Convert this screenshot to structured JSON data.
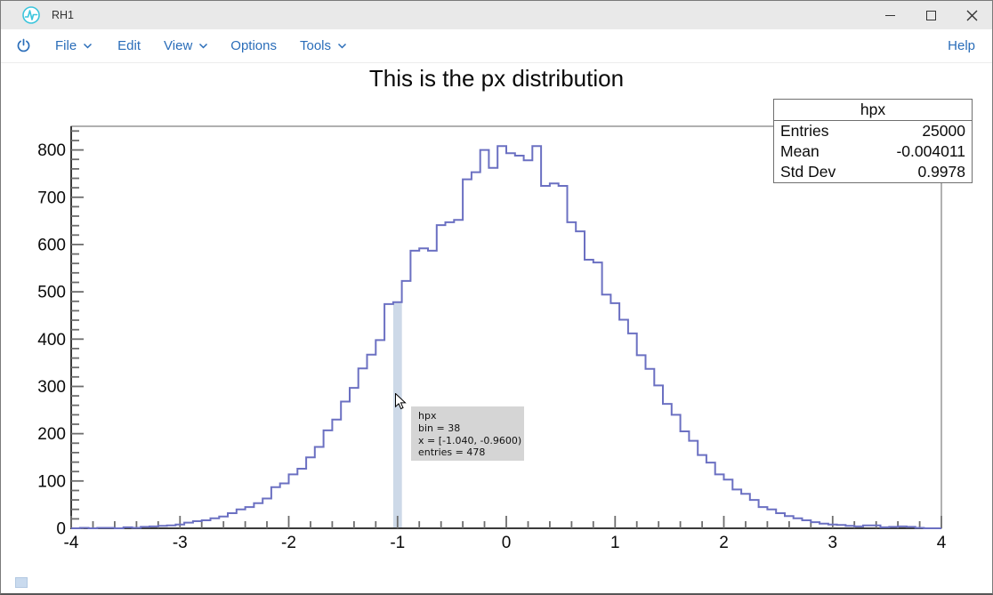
{
  "window": {
    "title": "RH1"
  },
  "menu": {
    "accent": "#2a6db9",
    "items": [
      {
        "label": "File",
        "chevron": true
      },
      {
        "label": "Edit",
        "chevron": false
      },
      {
        "label": "View",
        "chevron": true
      },
      {
        "label": "Options",
        "chevron": false
      },
      {
        "label": "Tools",
        "chevron": true
      }
    ],
    "help_label": "Help"
  },
  "chart_data": {
    "type": "histogram",
    "name": "hpx",
    "title": "This is the px distribution",
    "x_range": [
      -4,
      4
    ],
    "n_bins": 100,
    "bin_width": 0.08,
    "y_range": [
      0,
      850
    ],
    "x_major_ticks": [
      -4,
      -3,
      -2,
      -1,
      0,
      1,
      2,
      3,
      4
    ],
    "y_major_ticks": [
      0,
      100,
      200,
      300,
      400,
      500,
      600,
      700,
      800
    ],
    "x_minor_step": 0.2,
    "y_minor_step": 20,
    "grid": false,
    "line_color": "#6b70c2",
    "highlighted_bin": {
      "index": 38,
      "x_low": -1.04,
      "x_high": -0.96,
      "entries": 478,
      "color": "#cdd9e8"
    },
    "values": [
      0,
      1,
      0,
      1,
      1,
      0,
      2,
      1,
      3,
      4,
      5,
      6,
      8,
      12,
      15,
      17,
      21,
      25,
      32,
      40,
      45,
      53,
      63,
      87,
      95,
      114,
      126,
      150,
      172,
      207,
      230,
      268,
      297,
      338,
      367,
      398,
      474,
      478,
      523,
      587,
      592,
      587,
      641,
      647,
      652,
      738,
      753,
      800,
      762,
      808,
      793,
      788,
      778,
      808,
      724,
      729,
      724,
      647,
      628,
      568,
      562,
      494,
      476,
      441,
      412,
      366,
      337,
      302,
      263,
      240,
      205,
      185,
      155,
      139,
      114,
      103,
      82,
      73,
      60,
      45,
      40,
      32,
      26,
      21,
      17,
      13,
      10,
      8,
      7,
      5,
      4,
      6,
      6,
      2,
      3,
      4,
      3,
      1,
      0,
      0
    ]
  },
  "stats_box": {
    "title": "hpx",
    "rows": [
      {
        "label": "Entries",
        "value": "25000"
      },
      {
        "label": "Mean",
        "value": "-0.004011"
      },
      {
        "label": "Std Dev",
        "value": "0.9978"
      }
    ]
  },
  "tooltip": {
    "bg": "#d5d5d5",
    "lines": [
      "hpx",
      "bin = 38",
      "x = [-1.040, -0.9600)",
      "entries = 478"
    ]
  }
}
